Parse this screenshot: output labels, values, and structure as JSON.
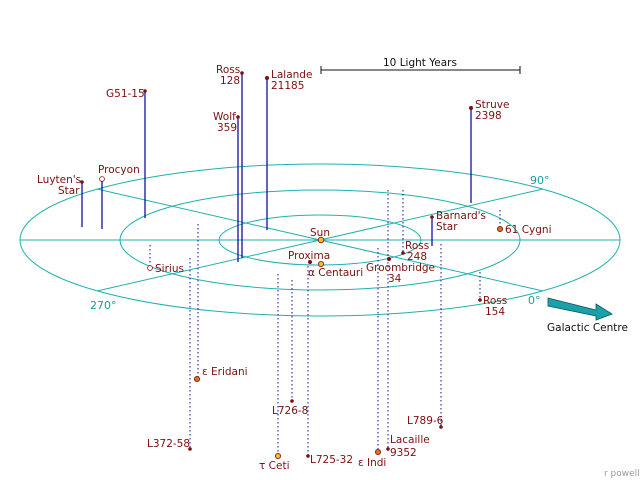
{
  "scale_label": "10 Light Years",
  "credit": "r powell",
  "direction_label": "Galactic Centre",
  "angles": {
    "a0": "0°",
    "a90": "90°",
    "a270": "270°"
  },
  "colors": {
    "ring": "#20b0b0",
    "above": "#1010a0",
    "below": "#1010a0",
    "label": "#7a1010",
    "star_fill": "#f0a020"
  },
  "stars": {
    "sun": "Sun",
    "proxima": "Proxima",
    "alpha_centauri": "α Centauri",
    "ross128": [
      "Ross",
      "128"
    ],
    "lalande": [
      "Lalande",
      "21185"
    ],
    "g51": "G51-15",
    "wolf": [
      "Wolf",
      "359"
    ],
    "struve": [
      "Struve",
      "2398"
    ],
    "luyten": [
      "Luyten's",
      "Star"
    ],
    "procyon": "Procyon",
    "sirius": "Sirius",
    "barnard": [
      "Barnard's",
      "Star"
    ],
    "cygni": "61 Cygni",
    "ross248": [
      "Ross",
      "248"
    ],
    "groombridge": [
      "Groombridge",
      "34"
    ],
    "ross154": [
      "Ross",
      "154"
    ],
    "eridani": "ε Eridani",
    "l726": "L726-8",
    "l372": "L372-58",
    "tau_ceti": "τ Ceti",
    "l725": "L725-32",
    "indi": "ε Indi",
    "lacaille": [
      "Lacaille",
      "9352"
    ],
    "l789": "L789-6"
  }
}
